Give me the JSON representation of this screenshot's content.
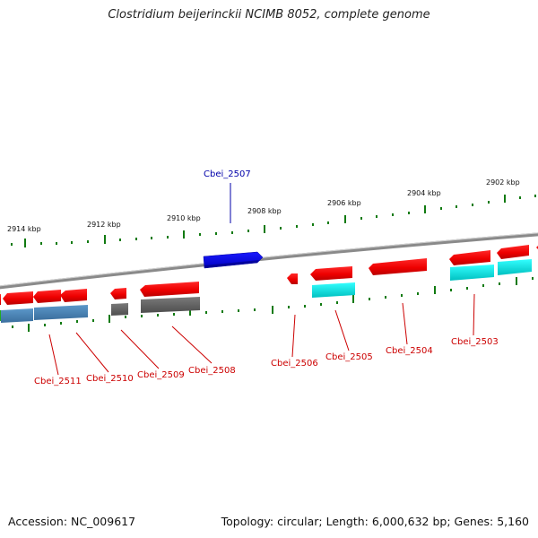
{
  "title": "Clostridium beijerinckii NCIMB 8052, complete genome",
  "footer": {
    "accession": "Accession: NC_009617",
    "topology": "Topology: circular; Length: 6,000,632 bp; Genes: 5,160"
  },
  "scale_labels": [
    "2914 kbp",
    "2912 kbp",
    "2910 kbp",
    "2908 kbp",
    "2906 kbp",
    "2904 kbp",
    "2902 kbp"
  ],
  "colors": {
    "forward_gene": "#ff0000",
    "forward_label": "#0000aa",
    "forward_gene_blue": "#0000ff",
    "reverse_label": "#cc0000",
    "cds_steelblue": "#4682b4",
    "cds_cyan": "#00e5e5",
    "cds_gray": "#666666",
    "backbone": "#808080",
    "ticks": "#117a11"
  },
  "genes": [
    {
      "name": "Cbei_2507",
      "strand": "forward"
    },
    {
      "name": "Cbei_2511",
      "strand": "reverse"
    },
    {
      "name": "Cbei_2510",
      "strand": "reverse"
    },
    {
      "name": "Cbei_2509",
      "strand": "reverse"
    },
    {
      "name": "Cbei_2508",
      "strand": "reverse"
    },
    {
      "name": "Cbei_2506",
      "strand": "reverse"
    },
    {
      "name": "Cbei_2505",
      "strand": "reverse"
    },
    {
      "name": "Cbei_2504",
      "strand": "reverse"
    },
    {
      "name": "Cbei_2503",
      "strand": "reverse"
    }
  ]
}
